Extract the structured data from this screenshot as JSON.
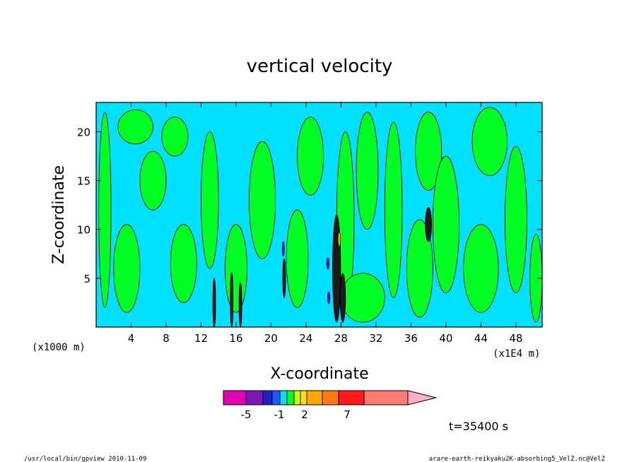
{
  "chart_data": {
    "type": "heatmap",
    "title": "vertical velocity",
    "xlabel": "X-coordinate",
    "ylabel": "Z-coordinate",
    "x_unit": "(x1E4 m)",
    "y_unit": "(x1000 m)",
    "xlim": [
      0,
      51
    ],
    "ylim": [
      0,
      23
    ],
    "x_ticks": [
      4,
      8,
      12,
      16,
      20,
      24,
      28,
      32,
      36,
      40,
      44,
      48
    ],
    "y_ticks": [
      5,
      10,
      15,
      20
    ],
    "colorbar": {
      "tick_labels": [
        "-5",
        "-1",
        "2",
        "7"
      ],
      "colors": [
        "#e300b4",
        "#7e17b8",
        "#2020c8",
        "#1e58ff",
        "#00e0ff",
        "#00ff22",
        "#ccff00",
        "#ffe300",
        "#ffa800",
        "#ff7a10",
        "#ff1a1a",
        "#ff7a72"
      ],
      "arrow_color": "#ffb0c0"
    },
    "field_colors": {
      "background_band": "#00e0ff",
      "positive_band": "#00ff22",
      "strong_up": "#ffa800",
      "strong_down": "#2020c8"
    },
    "green_regions": [
      {
        "xc": 1.0,
        "zc": 12.0,
        "w": 1.4,
        "h": 20.0
      },
      {
        "xc": 3.5,
        "zc": 6.0,
        "w": 3.0,
        "h": 9.0
      },
      {
        "xc": 4.5,
        "zc": 20.5,
        "w": 4.0,
        "h": 3.5
      },
      {
        "xc": 6.5,
        "zc": 15.0,
        "w": 3.0,
        "h": 6.0
      },
      {
        "xc": 9.0,
        "zc": 19.5,
        "w": 3.0,
        "h": 4.0
      },
      {
        "xc": 10.0,
        "zc": 6.5,
        "w": 3.0,
        "h": 8.0
      },
      {
        "xc": 13.0,
        "zc": 13.0,
        "w": 2.0,
        "h": 14.0
      },
      {
        "xc": 16.0,
        "zc": 6.0,
        "w": 2.5,
        "h": 9.0
      },
      {
        "xc": 19.0,
        "zc": 13.0,
        "w": 3.0,
        "h": 12.0
      },
      {
        "xc": 23.0,
        "zc": 7.0,
        "w": 2.5,
        "h": 10.0
      },
      {
        "xc": 24.5,
        "zc": 17.5,
        "w": 3.0,
        "h": 8.0
      },
      {
        "xc": 28.5,
        "zc": 11.0,
        "w": 2.0,
        "h": 18.0
      },
      {
        "xc": 30.5,
        "zc": 3.0,
        "w": 5.0,
        "h": 5.0
      },
      {
        "xc": 31.0,
        "zc": 16.0,
        "w": 2.5,
        "h": 12.0
      },
      {
        "xc": 34.0,
        "zc": 12.0,
        "w": 2.0,
        "h": 18.0
      },
      {
        "xc": 37.0,
        "zc": 6.0,
        "w": 3.0,
        "h": 10.0
      },
      {
        "xc": 38.0,
        "zc": 18.0,
        "w": 3.0,
        "h": 8.0
      },
      {
        "xc": 40.0,
        "zc": 10.5,
        "w": 3.0,
        "h": 14.0
      },
      {
        "xc": 44.0,
        "zc": 6.0,
        "w": 4.0,
        "h": 9.0
      },
      {
        "xc": 45.0,
        "zc": 19.0,
        "w": 4.0,
        "h": 7.0
      },
      {
        "xc": 48.0,
        "zc": 11.0,
        "w": 2.5,
        "h": 15.0
      },
      {
        "xc": 50.3,
        "zc": 5.0,
        "w": 1.4,
        "h": 9.0
      }
    ],
    "dark_features": [
      {
        "xc": 27.5,
        "zc": 6.0,
        "w": 0.9,
        "h": 11.0
      },
      {
        "xc": 28.2,
        "zc": 3.0,
        "w": 0.6,
        "h": 5.0
      },
      {
        "xc": 38.0,
        "zc": 10.5,
        "w": 0.7,
        "h": 3.5
      },
      {
        "xc": 13.5,
        "zc": 2.5,
        "w": 0.3,
        "h": 5.0
      },
      {
        "xc": 15.5,
        "zc": 2.8,
        "w": 0.3,
        "h": 5.5
      },
      {
        "xc": 16.5,
        "zc": 2.3,
        "w": 0.3,
        "h": 4.5
      },
      {
        "xc": 21.5,
        "zc": 5.0,
        "w": 0.3,
        "h": 4.0
      }
    ],
    "updraft_cores": [
      {
        "xc": 27.8,
        "zc": 9.0,
        "w": 0.3,
        "h": 1.5
      }
    ],
    "downdraft_cores": [
      {
        "xc": 26.5,
        "zc": 6.5,
        "w": 0.3,
        "h": 1.2
      },
      {
        "xc": 21.4,
        "zc": 8.0,
        "w": 0.25,
        "h": 1.5
      },
      {
        "xc": 26.6,
        "zc": 3.0,
        "w": 0.3,
        "h": 1.2
      }
    ]
  },
  "time_label": "t=35400 s",
  "footer": {
    "left": "/usr/local/bin/gpview   2010-11-09",
    "right": "arare-earth-reikyaku2K-absorbing5_VelZ.nc@VelZ"
  }
}
